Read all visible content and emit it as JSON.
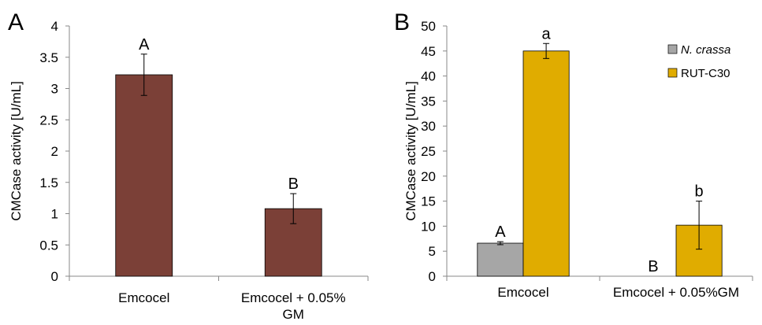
{
  "chart_data": [
    {
      "type": "bar",
      "panel_label": "A",
      "ylabel": "CMCase activity [U/mL]",
      "xlabel": "",
      "ylim": [
        0,
        4
      ],
      "yticks": [
        0,
        0.5,
        1,
        1.5,
        2,
        2.5,
        3,
        3.5,
        4
      ],
      "ytick_labels": [
        "0",
        "0.5",
        "1",
        "1.5",
        "2",
        "2.5",
        "3",
        "3.5",
        "4"
      ],
      "categories": [
        "Emcocel",
        "Emcocel + 0.05% GM"
      ],
      "series": [
        {
          "color": "#7B4037",
          "values": [
            3.22,
            1.08
          ],
          "errors": [
            0.33,
            0.24
          ],
          "labels": [
            "A",
            "B"
          ]
        }
      ],
      "legend": null
    },
    {
      "type": "bar",
      "panel_label": "B",
      "ylabel": "CMCase activity [U/mL]",
      "xlabel": "",
      "ylim": [
        0,
        50
      ],
      "yticks": [
        0,
        5,
        10,
        15,
        20,
        25,
        30,
        35,
        40,
        45,
        50
      ],
      "ytick_labels": [
        "0",
        "5",
        "10",
        "15",
        "20",
        "25",
        "30",
        "35",
        "40",
        "45",
        "50"
      ],
      "categories": [
        "Emcocel",
        "Emcocel + 0.05%GM"
      ],
      "series": [
        {
          "name": "N. crassa",
          "name_italic": true,
          "color": "#A6A6A6",
          "values": [
            6.6,
            0
          ],
          "errors": [
            0.3,
            0
          ],
          "labels": [
            "A",
            "B"
          ]
        },
        {
          "name": "RUT-C30",
          "name_italic": false,
          "color": "#E0AC00",
          "values": [
            45.0,
            10.2
          ],
          "errors": [
            1.5,
            4.8
          ],
          "labels": [
            "a",
            "b"
          ]
        }
      ],
      "legend": "top-right"
    }
  ]
}
